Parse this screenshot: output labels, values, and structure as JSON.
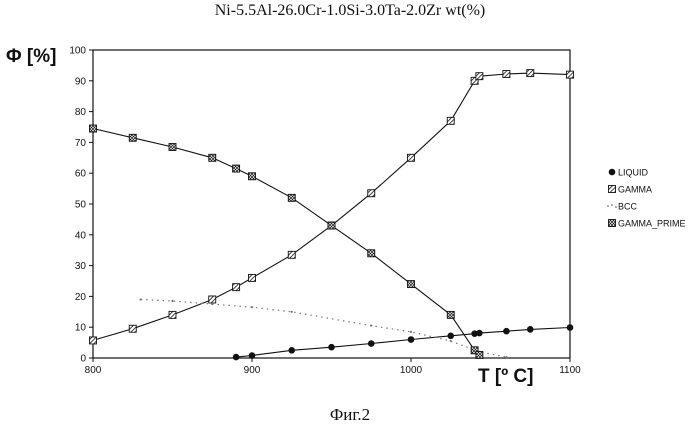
{
  "title": "Ni-5.5Al-26.0Cr-1.0Si-3.0Ta-2.0Zr wt(%)",
  "caption": "Фиг.2",
  "colors": {
    "ink": "#111111",
    "grey": "#777777",
    "background": "#ffffff"
  },
  "chart_data": {
    "type": "line",
    "title": "Ni-5.5Al-26.0Cr-1.0Si-3.0Ta-2.0Zr wt(%)",
    "xlabel": "T [º C]",
    "ylabel": "Φ [%]",
    "xlim": [
      800,
      1100
    ],
    "ylim": [
      0,
      100
    ],
    "xticks": [
      "800",
      "900",
      "1000",
      "1100"
    ],
    "yticks": [
      "0",
      "10",
      "20",
      "30",
      "40",
      "50",
      "60",
      "70",
      "80",
      "90",
      "100"
    ],
    "grid": false,
    "legend_position": "right",
    "series": [
      {
        "name": "LIQUID",
        "marker": "filled-circle",
        "style": "solid",
        "points": [
          [
            890,
            0.3
          ],
          [
            900,
            0.8
          ],
          [
            925,
            2.5
          ],
          [
            950,
            3.5
          ],
          [
            975,
            4.7
          ],
          [
            1000,
            6.0
          ],
          [
            1025,
            7.2
          ],
          [
            1040,
            7.9
          ],
          [
            1043,
            8.1
          ],
          [
            1060,
            8.7
          ],
          [
            1075,
            9.3
          ],
          [
            1100,
            9.9
          ]
        ]
      },
      {
        "name": "GAMMA",
        "marker": "hatched-square",
        "style": "solid",
        "points": [
          [
            800,
            5.7
          ],
          [
            825,
            9.5
          ],
          [
            850,
            14.0
          ],
          [
            875,
            19.0
          ],
          [
            890,
            23.0
          ],
          [
            900,
            26.0
          ],
          [
            925,
            33.5
          ],
          [
            950,
            43.0
          ],
          [
            975,
            53.5
          ],
          [
            1000,
            65.0
          ],
          [
            1025,
            77.0
          ],
          [
            1040,
            90.0
          ],
          [
            1043,
            91.5
          ],
          [
            1060,
            92.2
          ],
          [
            1075,
            92.5
          ],
          [
            1100,
            92.0
          ]
        ]
      },
      {
        "name": "BCC",
        "marker": "dot",
        "style": "dotted",
        "points": [
          [
            830,
            19.0
          ],
          [
            850,
            18.5
          ],
          [
            875,
            17.5
          ],
          [
            900,
            16.5
          ],
          [
            925,
            15.0
          ],
          [
            975,
            10.5
          ],
          [
            1000,
            8.5
          ],
          [
            1025,
            5.5
          ],
          [
            1043,
            2.0
          ],
          [
            1060,
            0.3
          ]
        ]
      },
      {
        "name": "GAMMA_PRIME",
        "marker": "crosshatched-square",
        "style": "solid",
        "points": [
          [
            800,
            74.5
          ],
          [
            825,
            71.5
          ],
          [
            850,
            68.5
          ],
          [
            875,
            65.0
          ],
          [
            890,
            61.5
          ],
          [
            900,
            59.0
          ],
          [
            925,
            52.0
          ],
          [
            950,
            43.0
          ],
          [
            975,
            34.0
          ],
          [
            1000,
            24.0
          ],
          [
            1025,
            14.0
          ],
          [
            1040,
            2.5
          ],
          [
            1043,
            1.0
          ]
        ]
      }
    ]
  }
}
